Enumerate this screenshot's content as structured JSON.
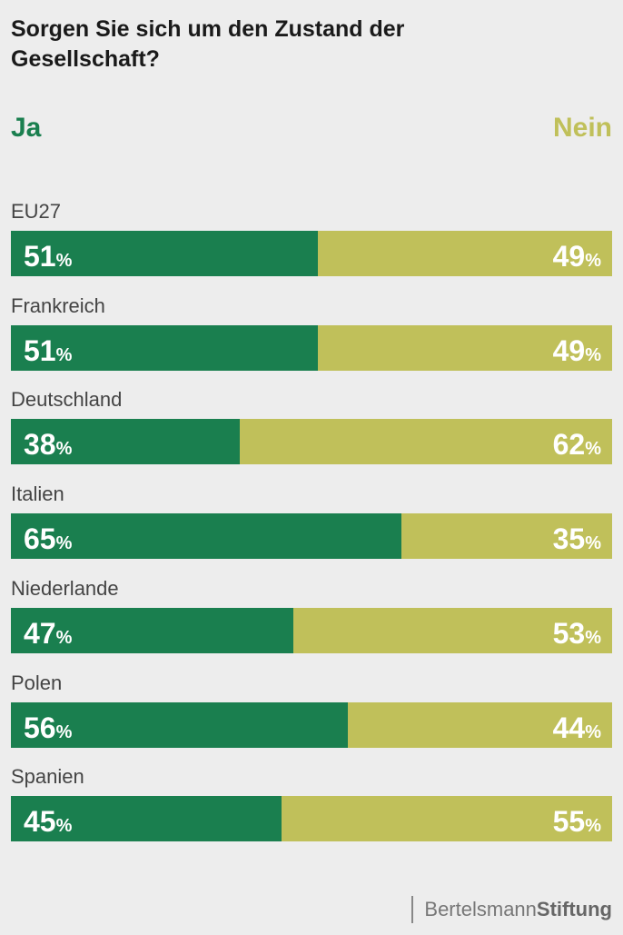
{
  "chart_data": {
    "type": "bar",
    "stacked": true,
    "orientation": "horizontal",
    "title": "Sorgen Sie sich um den Zustand der Gesellschaft?",
    "unit": "%",
    "categories": [
      "EU27",
      "Frankreich",
      "Deutschland",
      "Italien",
      "Niederlande",
      "Polen",
      "Spanien"
    ],
    "series": [
      {
        "name": "Ja",
        "color": "#1a7f4f",
        "values": [
          51,
          51,
          38,
          65,
          47,
          56,
          45
        ]
      },
      {
        "name": "Nein",
        "color": "#c0c05a",
        "values": [
          49,
          49,
          62,
          35,
          53,
          44,
          55
        ]
      }
    ],
    "xlim": [
      0,
      100
    ]
  },
  "logo": {
    "light": "Bertelsmann",
    "bold": "Stiftung"
  }
}
